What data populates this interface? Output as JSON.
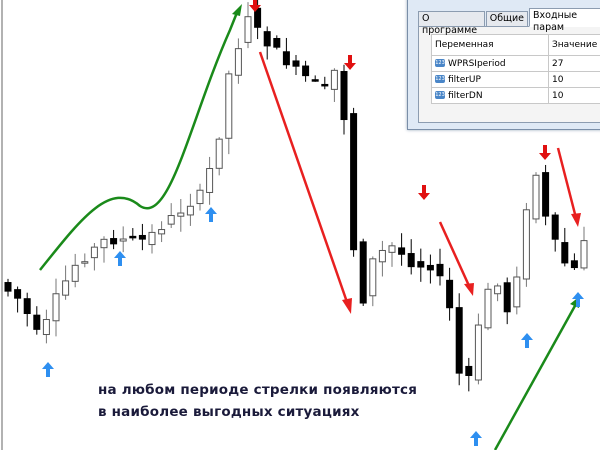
{
  "caption": {
    "line1": "на любом периоде стрелки появляются",
    "line2": "в наиболее выгодных ситуациях"
  },
  "dialog": {
    "tabs": [
      "О программе",
      "Общие",
      "Входные парам"
    ],
    "active_tab": 2,
    "columns": [
      "Переменная",
      "Значение"
    ],
    "rows": [
      {
        "name": "WPRSIperiod",
        "value": "27"
      },
      {
        "name": "filterUP",
        "value": "10"
      },
      {
        "name": "filterDN",
        "value": "10"
      }
    ],
    "row_icon": "numeric-123-icon"
  },
  "colors": {
    "up_arrow": "#2e8ff0",
    "down_arrow": "#e01010",
    "trend_up": "#1a8a1a",
    "trend_down": "#e82020"
  }
}
